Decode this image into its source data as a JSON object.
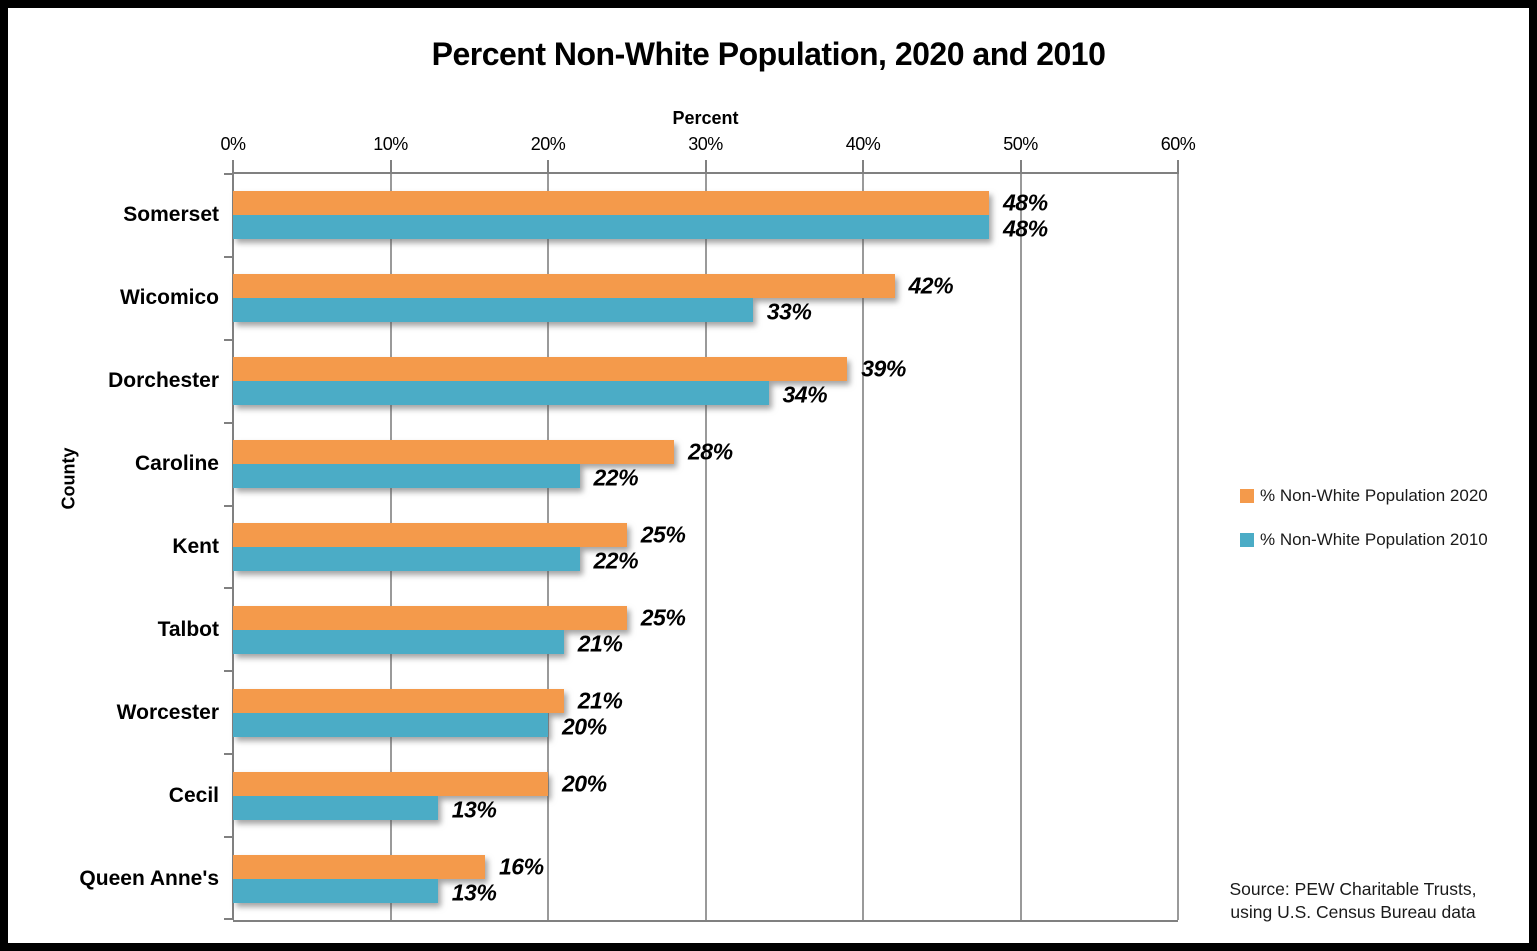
{
  "title": "Percent Non-White Population, 2020 and 2010",
  "chart_data": {
    "type": "bar",
    "orientation": "horizontal",
    "title": "Percent Non-White Population, 2020 and 2010",
    "xlabel": "Percent",
    "ylabel": "County",
    "xlim": [
      0,
      60
    ],
    "x_ticks": [
      "0%",
      "10%",
      "20%",
      "30%",
      "40%",
      "50%",
      "60%"
    ],
    "grid": true,
    "legend_position": "right",
    "categories": [
      "Somerset",
      "Wicomico",
      "Dorchester",
      "Caroline",
      "Kent",
      "Talbot",
      "Worcester",
      "Cecil",
      "Queen Anne's"
    ],
    "series": [
      {
        "name": "% Non-White Population 2020",
        "color": "#F49A4B",
        "values": [
          48,
          42,
          39,
          28,
          25,
          25,
          21,
          20,
          16
        ],
        "labels": [
          "48%",
          "42%",
          "39%",
          "28%",
          "25%",
          "25%",
          "21%",
          "20%",
          "16%"
        ]
      },
      {
        "name": "% Non-White Population 2010",
        "color": "#4BACC6",
        "values": [
          48,
          33,
          34,
          22,
          22,
          21,
          20,
          13,
          13
        ],
        "labels": [
          "48%",
          "33%",
          "34%",
          "22%",
          "22%",
          "21%",
          "20%",
          "13%",
          "13%"
        ]
      }
    ]
  },
  "legend": {
    "items": [
      {
        "label": "% Non-White Population 2020",
        "color": "#F49A4B"
      },
      {
        "label": "% Non-White Population 2010",
        "color": "#4BACC6"
      }
    ]
  },
  "source": {
    "line1": "Source: PEW Charitable Trusts,",
    "line2": "using U.S. Census Bureau data"
  },
  "colors": {
    "series_2020": "#F49A4B",
    "series_2010": "#4BACC6",
    "gridline": "#9A9A9A",
    "axis": "#808080",
    "text": "#000000",
    "background": "#FFFFFF",
    "border": "#000000"
  }
}
